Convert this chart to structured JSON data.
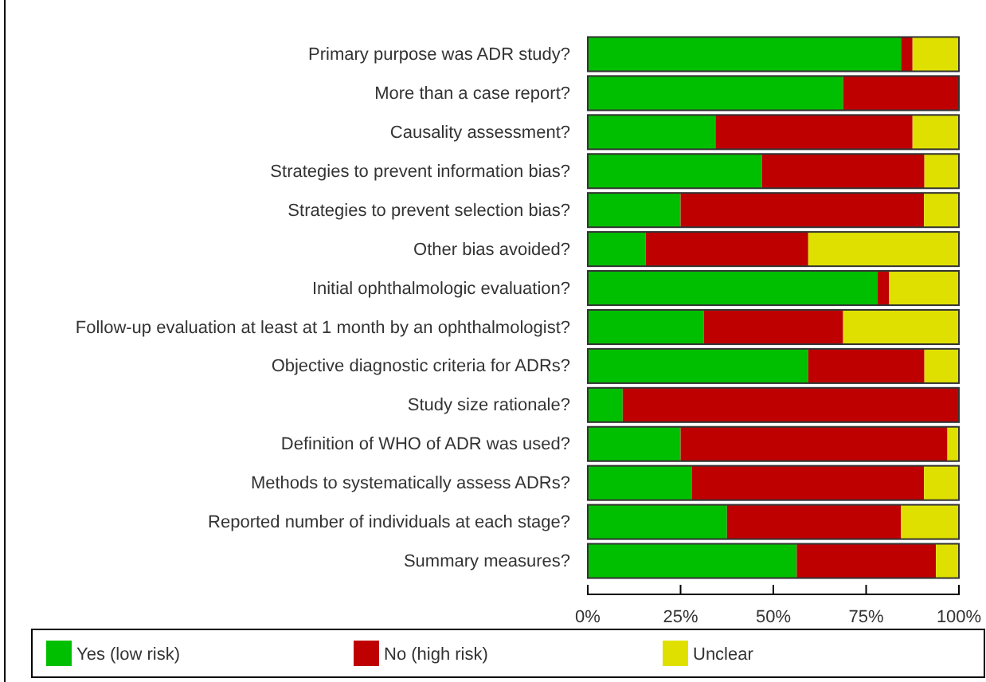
{
  "chart_data": {
    "type": "bar",
    "orientation": "horizontal",
    "stacked": true,
    "categories": [
      "Primary purpose was ADR study?",
      "More than a case report?",
      "Causality assessment?",
      "Strategies to prevent information bias?",
      "Strategies to prevent selection bias?",
      "Other bias avoided?",
      "Initial ophthalmologic evaluation?",
      "Follow-up evaluation at least at 1 month by an ophthalmologist?",
      "Objective diagnostic criteria for ADRs?",
      "Study size rationale?",
      "Definition of WHO of ADR was used?",
      "Methods to systematically assess ADRs?",
      "Reported number of individuals at each stage?",
      "Summary measures?"
    ],
    "series": [
      {
        "name": "Yes (low risk)",
        "color": "#00bf00",
        "values": [
          84.4,
          68.8,
          34.4,
          46.9,
          25.0,
          15.6,
          78.1,
          31.3,
          59.4,
          9.4,
          25.0,
          28.1,
          37.5,
          56.3
        ]
      },
      {
        "name": "No (high risk)",
        "color": "#bf0000",
        "values": [
          3.1,
          31.2,
          53.1,
          43.8,
          65.6,
          43.8,
          3.1,
          37.5,
          31.3,
          90.6,
          71.9,
          62.5,
          46.9,
          37.5
        ]
      },
      {
        "name": "Unclear",
        "color": "#e0e000",
        "values": [
          12.5,
          0,
          12.5,
          9.3,
          9.4,
          40.6,
          18.8,
          31.2,
          9.3,
          0,
          3.1,
          9.4,
          15.6,
          6.2
        ]
      }
    ],
    "xlim": [
      0,
      100
    ],
    "xticks": [
      {
        "value": 0,
        "label": "0%"
      },
      {
        "value": 25,
        "label": "25%"
      },
      {
        "value": 50,
        "label": "50%"
      },
      {
        "value": 75,
        "label": "75%"
      },
      {
        "value": 100,
        "label": "100%"
      }
    ],
    "legend": "bottom"
  }
}
